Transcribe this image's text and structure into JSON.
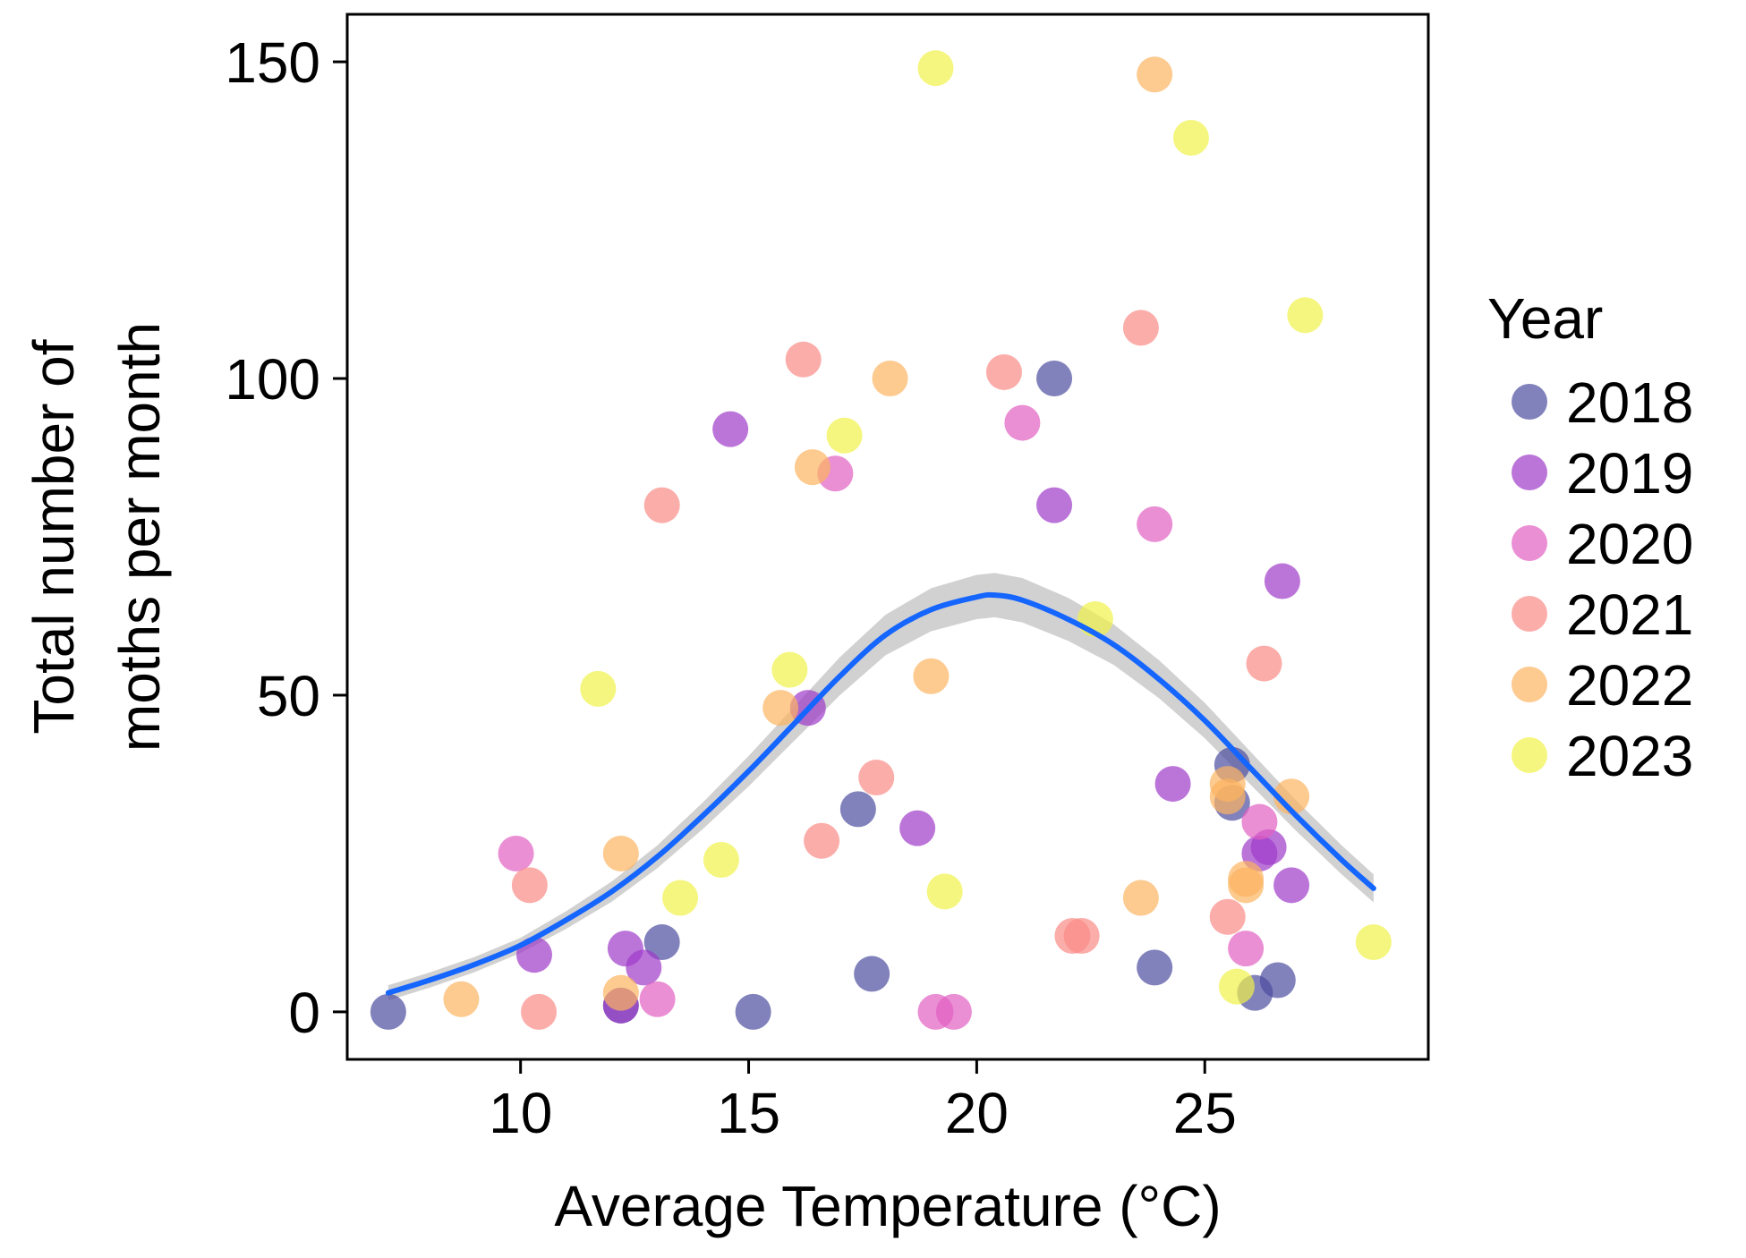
{
  "chart_data": {
    "type": "scatter",
    "title": "",
    "xlabel": "Average Temperature (°C)",
    "ylabel_lines": [
      "Total number of",
      "moths per month"
    ],
    "xlim": [
      6.2,
      29.9
    ],
    "ylim": [
      -7.5,
      157.5
    ],
    "xticks": [
      10,
      15,
      20,
      25
    ],
    "yticks": [
      0,
      50,
      100,
      150
    ],
    "grid": false,
    "legend": {
      "title": "Year",
      "position": "right",
      "entries": [
        {
          "label": "2018",
          "color": "#4b4ba0"
        },
        {
          "label": "2019",
          "color": "#9e3bc9"
        },
        {
          "label": "2020",
          "color": "#e160c2"
        },
        {
          "label": "2021",
          "color": "#fa8a86"
        },
        {
          "label": "2022",
          "color": "#fcb460"
        },
        {
          "label": "2023",
          "color": "#f1f248"
        }
      ]
    },
    "series": [
      {
        "name": "2018",
        "color": "#4b4ba0",
        "points": [
          [
            7.1,
            0
          ],
          [
            13.1,
            11
          ],
          [
            15.1,
            0
          ],
          [
            17.4,
            32
          ],
          [
            17.7,
            6
          ],
          [
            21.7,
            100
          ],
          [
            23.9,
            7
          ],
          [
            25.6,
            39
          ],
          [
            25.6,
            33
          ],
          [
            26.1,
            3
          ],
          [
            26.6,
            5
          ],
          [
            12.2,
            1
          ]
        ]
      },
      {
        "name": "2019",
        "color": "#9e3bc9",
        "points": [
          [
            10.3,
            9
          ],
          [
            12.3,
            10
          ],
          [
            12.7,
            7
          ],
          [
            12.2,
            1
          ],
          [
            14.6,
            92
          ],
          [
            16.3,
            48
          ],
          [
            18.7,
            29
          ],
          [
            21.7,
            80
          ],
          [
            24.3,
            36
          ],
          [
            26.2,
            25
          ],
          [
            26.4,
            26
          ],
          [
            26.7,
            68
          ],
          [
            26.9,
            20
          ]
        ]
      },
      {
        "name": "2020",
        "color": "#e160c2",
        "points": [
          [
            9.9,
            25
          ],
          [
            13.0,
            2
          ],
          [
            16.9,
            85
          ],
          [
            19.1,
            0
          ],
          [
            19.5,
            0
          ],
          [
            21.0,
            93
          ],
          [
            23.9,
            77
          ],
          [
            25.9,
            10
          ],
          [
            26.2,
            30
          ]
        ]
      },
      {
        "name": "2021",
        "color": "#fa8a86",
        "points": [
          [
            10.2,
            20
          ],
          [
            10.4,
            0
          ],
          [
            13.1,
            80
          ],
          [
            16.2,
            103
          ],
          [
            16.6,
            27
          ],
          [
            17.8,
            37
          ],
          [
            20.6,
            101
          ],
          [
            22.1,
            12
          ],
          [
            22.3,
            12
          ],
          [
            23.6,
            108
          ],
          [
            25.5,
            15
          ],
          [
            26.3,
            55
          ]
        ]
      },
      {
        "name": "2022",
        "color": "#fcb460",
        "points": [
          [
            8.7,
            2
          ],
          [
            12.2,
            3
          ],
          [
            12.2,
            25
          ],
          [
            15.7,
            48
          ],
          [
            16.4,
            86
          ],
          [
            18.1,
            100
          ],
          [
            19.0,
            53
          ],
          [
            23.6,
            18
          ],
          [
            23.9,
            148
          ],
          [
            25.5,
            36
          ],
          [
            25.5,
            34
          ],
          [
            25.9,
            21
          ],
          [
            25.9,
            20
          ],
          [
            26.9,
            34
          ]
        ]
      },
      {
        "name": "2023",
        "color": "#f1f248",
        "points": [
          [
            11.7,
            51
          ],
          [
            13.5,
            18
          ],
          [
            14.4,
            24
          ],
          [
            15.9,
            54
          ],
          [
            17.1,
            91
          ],
          [
            19.1,
            149
          ],
          [
            19.3,
            19
          ],
          [
            22.6,
            62
          ],
          [
            24.7,
            138
          ],
          [
            25.7,
            4
          ],
          [
            27.2,
            110
          ],
          [
            28.7,
            11
          ]
        ]
      }
    ],
    "trend": {
      "name": "smooth fit",
      "color": "#1565ff",
      "band_color": "#b8b8b8",
      "x": [
        7.1,
        8,
        9,
        10,
        11,
        12,
        13,
        14,
        15,
        16,
        17,
        18,
        19,
        20,
        20.4,
        21,
        22,
        23,
        24,
        25,
        26,
        27,
        28,
        28.7
      ],
      "y": [
        3,
        5,
        7.5,
        10.5,
        14.5,
        19,
        24.5,
        31,
        38,
        45.5,
        53,
        59.5,
        63.5,
        65.5,
        65.8,
        65,
        62,
        58,
        52.5,
        46,
        38.5,
        31,
        24,
        19.5
      ],
      "band_halfwidth": [
        1.2,
        1.2,
        1.2,
        1.2,
        1.4,
        1.6,
        1.8,
        2.1,
        2.4,
        2.7,
        3.0,
        3.2,
        3.4,
        3.5,
        3.5,
        3.5,
        3.4,
        3.2,
        3.0,
        2.8,
        2.6,
        2.4,
        2.3,
        2.2
      ]
    }
  }
}
